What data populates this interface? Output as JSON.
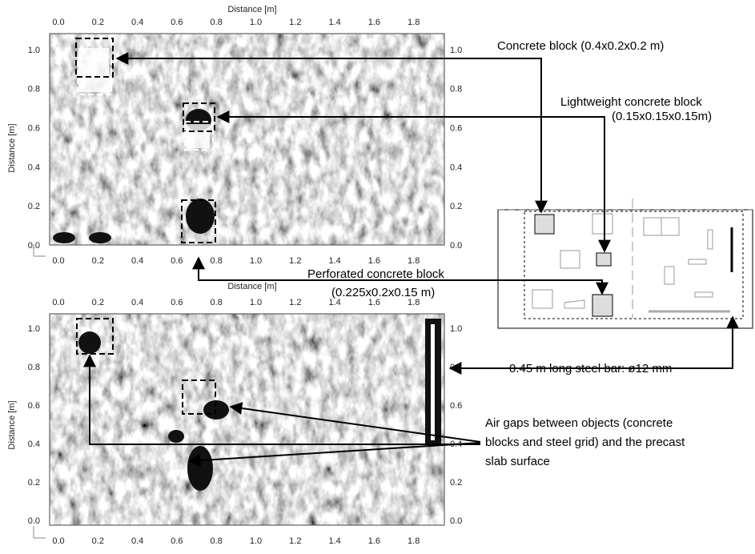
{
  "panels": [
    {
      "x_title": "Distance [m]",
      "y_title": "Distance [m]",
      "x_ticks": [
        "0.0",
        "0.2",
        "0.4",
        "0.6",
        "0.8",
        "1.0",
        "1.2",
        "1.4",
        "1.6",
        "1.8"
      ],
      "y_ticks": [
        "0.0",
        "0.2",
        "0.4",
        "0.6",
        "0.8",
        "1.0"
      ]
    },
    {
      "x_title": "Distance [m]",
      "y_title": "Distance [m]",
      "x_ticks": [
        "0.0",
        "0.2",
        "0.4",
        "0.6",
        "0.8",
        "1.0",
        "1.2",
        "1.4",
        "1.6",
        "1.8"
      ],
      "y_ticks": [
        "0.0",
        "0.2",
        "0.4",
        "0.6",
        "0.8",
        "1.0"
      ]
    }
  ],
  "annotations": {
    "concrete_block": "Concrete block (0.4x0.2x0.2 m)",
    "lightweight_block": [
      "Lightweight concrete block",
      "(0.15x0.15x0.15m)"
    ],
    "perforated_block": [
      "Perforated concrete block",
      "(0.225x0.2x0.15 m)"
    ],
    "steel_bar": "0.45 m long steel bar: ø12 mm",
    "air_gaps": [
      "Air gaps between objects (concrete",
      "blocks and steel grid) and the precast",
      "slab surface"
    ]
  }
}
